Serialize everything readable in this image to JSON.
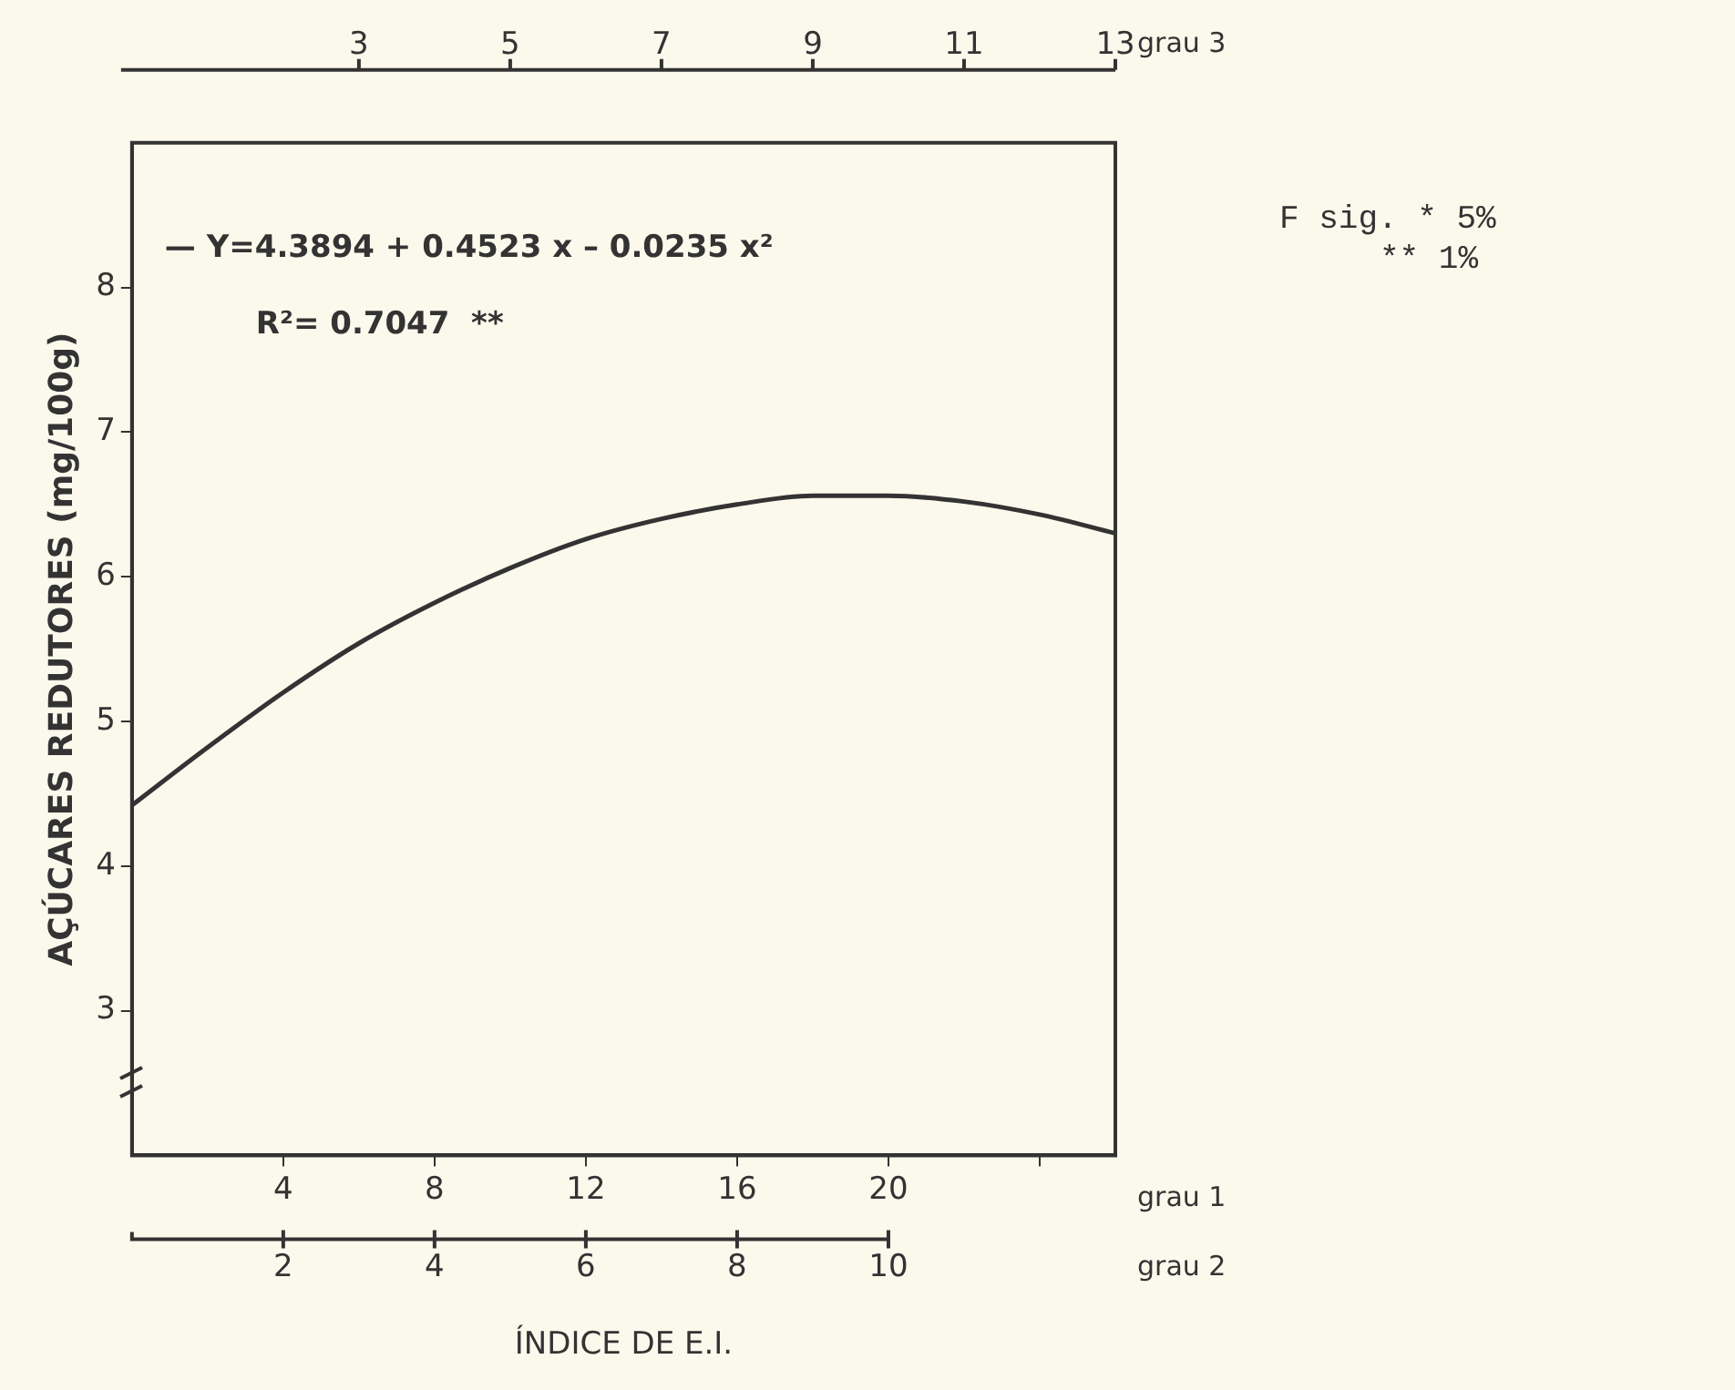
{
  "chart_data": {
    "type": "line",
    "ylabel": "AÇÚCARES REDUTORES (mg/100g)",
    "xlabel": "ÍNDICE DE E.I.",
    "x": [
      0,
      2,
      4,
      6,
      8,
      10,
      12,
      14,
      16,
      18,
      20,
      22,
      24,
      26
    ],
    "series": [
      {
        "color": "#333333",
        "values": [
          4.42,
          4.82,
          5.2,
          5.54,
          5.82,
          6.06,
          6.26,
          6.4,
          6.5,
          6.56,
          6.56,
          6.52,
          6.43,
          6.3
        ]
      }
    ],
    "xlim": [
      0,
      26
    ],
    "xticks": [
      4,
      8,
      12,
      16,
      20,
      {
        "value": 24,
        "label": null
      }
    ],
    "x2lim": [
      0,
      13
    ],
    "x2ticks": [
      3,
      5,
      7,
      9,
      11,
      13
    ],
    "x2label": "grau 3",
    "ylim": [
      2,
      9
    ],
    "yticks": [
      3,
      4,
      5,
      6,
      7,
      8
    ],
    "annotations": [
      "— Y=4.3894 + 0.4523 x – 0.0235 x²",
      "R²= 0.7047  **",
      "F sig. * 5%",
      "** 1%",
      "grau 1",
      "grau 2",
      {
        "text": "2",
        "x": 4
      },
      {
        "text": "4",
        "x": 8
      },
      {
        "text": "6",
        "x": 12
      },
      {
        "text": "8",
        "x": 16
      },
      {
        "text": "10",
        "x": 20
      }
    ],
    "grid": false,
    "legend": false,
    "marker": "none",
    "line_style": "solid"
  }
}
